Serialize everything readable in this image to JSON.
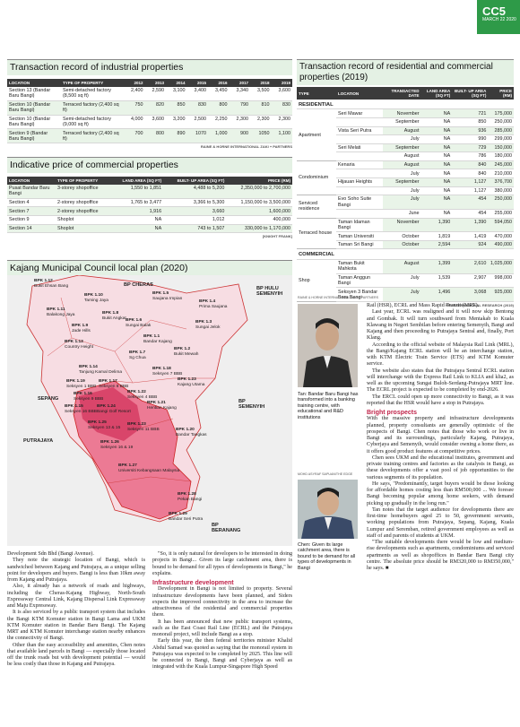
{
  "badge": {
    "code": "CC5",
    "date": "MARCH 22 2020"
  },
  "industrial": {
    "title": "Transaction record of industrial properties",
    "headers": [
      "LOCATION",
      "TYPE OF PROPERTY",
      "2012",
      "2013",
      "2014",
      "2015",
      "2016",
      "2017",
      "2018",
      "2019"
    ],
    "rows": [
      {
        "loc": "Section 13 (Bandar Baru Bangi)",
        "type": "Semi-detached factory (8,500 sq ft)",
        "vals": [
          "2,400",
          "2,590",
          "3,100",
          "3,400",
          "3,450",
          "3,340",
          "3,500",
          "3,600"
        ]
      },
      {
        "loc": "Section 10 (Bandar Baru Bangi)",
        "type": "Terraced factory (2,400 sq ft)",
        "vals": [
          "750",
          "820",
          "850",
          "830",
          "800",
          "790",
          "810",
          "830"
        ]
      },
      {
        "loc": "Section 10 (Bandar Baru Bangi)",
        "type": "Semi-detached factory (9,000 sq ft)",
        "vals": [
          "4,000",
          "3,600",
          "3,200",
          "2,500",
          "2,250",
          "2,300",
          "2,300",
          "2,300"
        ]
      },
      {
        "loc": "Section 9 (Bandar Baru Bangi)",
        "type": "Terraced factory (2,400 sq ft)",
        "vals": [
          "700",
          "800",
          "890",
          "1070",
          "1,000",
          "900",
          "1050",
          "1,100"
        ]
      }
    ],
    "source": "RAINE & HORNE INTERNATIONAL ZAKI + PARTNERS"
  },
  "commercial_price": {
    "title": "Indicative price of commercial properties",
    "headers": [
      "LOCATION",
      "TYPE OF PROPERTY",
      "LAND AREA (SQ FT)",
      "BUILT- UP AREA (SQ FT)",
      "PRICE (RM)"
    ],
    "rows": [
      {
        "loc": "Pusat Bandar Baru Bangi",
        "type": "3-storey shopoffice",
        "land": "1,550 to 1,851",
        "built": "4,488 to 5,200",
        "price": "2,350,000 to 2,700,000"
      },
      {
        "loc": "Section 4",
        "type": "2-storey shopoffice",
        "land": "1,765 to 3,477",
        "built": "3,366 to 5,300",
        "price": "1,150,000 to 3,500,000"
      },
      {
        "loc": "Section 7",
        "type": "2-storey shopoffice",
        "land": "1,916",
        "built": "3,660",
        "price": "1,600,000"
      },
      {
        "loc": "Section 9",
        "type": "Shoplot",
        "land": "NA",
        "built": "1,012",
        "price": "400,000"
      },
      {
        "loc": "Section 14",
        "type": "Shoplot",
        "land": "NA",
        "built": "743 to 1,507",
        "price": "330,000 to 1,170,000"
      }
    ],
    "source": "[KNIGHT FRANK]"
  },
  "residential": {
    "title": "Transaction record of residential and commercial properties (2019)",
    "headers": [
      "TYPE",
      "LOCATION",
      "TRANSACTED DATE",
      "LAND AREA (SQ FT)",
      "BUILT- UP AREA (SQ FT)",
      "PRICE (RM)"
    ],
    "section_res": "RESIDENTIAL",
    "section_com": "COMMERCIAL",
    "groups": [
      {
        "type": "Apartment",
        "rows": [
          {
            "loc": "Seri Mawar",
            "date": "November",
            "land": "NA",
            "built": "721",
            "price": "175,000"
          },
          {
            "loc": "",
            "date": "September",
            "land": "NA",
            "built": "850",
            "price": "250,000"
          },
          {
            "loc": "Vista Seri Putra",
            "date": "August",
            "land": "NA",
            "built": "936",
            "price": "285,000"
          },
          {
            "loc": "",
            "date": "July",
            "land": "NA",
            "built": "990",
            "price": "299,000"
          },
          {
            "loc": "Seri Melati",
            "date": "September",
            "land": "NA",
            "built": "729",
            "price": "150,000"
          },
          {
            "loc": "",
            "date": "August",
            "land": "NA",
            "built": "786",
            "price": "180,000"
          }
        ]
      },
      {
        "type": "Condominium",
        "rows": [
          {
            "loc": "Kenaria",
            "date": "August",
            "land": "NA",
            "built": "840",
            "price": "245,000"
          },
          {
            "loc": "",
            "date": "July",
            "land": "NA",
            "built": "840",
            "price": "210,000"
          },
          {
            "loc": "Hijauan Heights",
            "date": "September",
            "land": "NA",
            "built": "1,127",
            "price": "376,700"
          },
          {
            "loc": "",
            "date": "July",
            "land": "NA",
            "built": "1,127",
            "price": "380,000"
          }
        ]
      },
      {
        "type": "Serviced residence",
        "rows": [
          {
            "loc": "Evo Soho Suite Bangi",
            "date": "July",
            "land": "NA",
            "built": "454",
            "price": "250,000"
          },
          {
            "loc": "",
            "date": "June",
            "land": "NA",
            "built": "454",
            "price": "255,000"
          }
        ]
      },
      {
        "type": "Terraced house",
        "rows": [
          {
            "loc": "Taman Idaman Bangi",
            "date": "November",
            "land": "1,390",
            "built": "1,390",
            "price": "594,050"
          },
          {
            "loc": "Taman Universiti",
            "date": "October",
            "land": "1,819",
            "built": "1,419",
            "price": "470,000"
          },
          {
            "loc": "Taman Sri Bangi",
            "date": "October",
            "land": "2,594",
            "built": "924",
            "price": "490,000"
          }
        ]
      }
    ],
    "commercial": {
      "type": "Shop",
      "rows": [
        {
          "loc": "Taman Bukit Mahkota",
          "date": "August",
          "land": "1,399",
          "built": "2,610",
          "price": "1,025,000"
        },
        {
          "loc": "Taman Anggun Bangi",
          "date": "July",
          "land": "1,539",
          "built": "2,907",
          "price": "998,000"
        },
        {
          "loc": "Seksyen 3 Bandar Baru Bangi",
          "date": "July",
          "land": "1,496",
          "built": "3,068",
          "price": "925,000"
        }
      ]
    },
    "source": "PPI INTERNATIONAL RESEARCH (2019)"
  },
  "map": {
    "title": "Kajang Municipal Council local plan (2020)",
    "districts": [
      {
        "text": "BP CHERAS"
      },
      {
        "text": "BP HULU SEMENYIH"
      },
      {
        "text": "SEPANG"
      },
      {
        "text": "PUTRAJAYA"
      },
      {
        "text": "BP SEMENYIH"
      },
      {
        "text": "BP BERANANG"
      }
    ],
    "labels": [
      {
        "code": "BPK 1.10",
        "name": "Taming Jaya"
      },
      {
        "code": "BPK 1.12",
        "name": "Bukit Ehsan Bang"
      },
      {
        "code": "BPK 1.11",
        "name": "Balakong Jaya"
      },
      {
        "code": "BPK 1.8",
        "name": "Bukit Angkat"
      },
      {
        "code": "BPK 1.5",
        "name": "Saujana Impian"
      },
      {
        "code": "BPK 1.4",
        "name": "Prima Saujana"
      },
      {
        "code": "BPK 1.9",
        "name": "Jade Hills"
      },
      {
        "code": "BPK 1.6",
        "name": "Sungai Balak"
      },
      {
        "code": "BPK 1.3",
        "name": "Sungai Jelok"
      },
      {
        "code": "BPK 1.1",
        "name": "Bandar Kajang"
      },
      {
        "code": "BPK 1.13",
        "name": "Country Height"
      },
      {
        "code": "BPK 1.7",
        "name": "Sg Chua"
      },
      {
        "code": "BPK 1.2",
        "name": "Bukit Mewah"
      },
      {
        "code": "BPK 1.14",
        "name": "Tanjung Kamal Delima"
      },
      {
        "code": "BPK 1.18",
        "name": "Seksyen 7 BBB"
      },
      {
        "code": "BPK 1.19",
        "name": "Seksyen 1 BBB"
      },
      {
        "code": "BPK 1.17",
        "name": "Seksyen 8 BBB"
      },
      {
        "code": "BPK 1.23",
        "name": "Kajang Utama"
      },
      {
        "code": "BPK 1.16",
        "name": "Seksyen 9 BBB"
      },
      {
        "code": "BPK 1.22",
        "name": "Seksyen 4 BBB"
      },
      {
        "code": "BPK 1.21",
        "name": "Hentian Kajang"
      },
      {
        "code": "BPK 1.15",
        "name": "Seksyen 16 BBB"
      },
      {
        "code": "BPK 1.24",
        "name": "Bangi Golf Resort"
      },
      {
        "code": "BPK 1.25",
        "name": "Seksyen 13 & 15"
      },
      {
        "code": "BPK 1.23",
        "name": "Seksyen 11 BBB"
      },
      {
        "code": "BPK 1.20",
        "name": "Bandar Tangkas"
      },
      {
        "code": "BPK 1.26",
        "name": "Seksyen 16 & 19"
      },
      {
        "code": "BPK 1.27",
        "name": "Universiti Kebangsaan Malaysia"
      },
      {
        "code": "BPK 1.28",
        "name": "Pekan Bangi"
      },
      {
        "code": "BPK 1.29",
        "name": "Bandar Seri Putra"
      }
    ]
  },
  "col1": [
    "Development Sdn Bhd (Bangi Avenue).",
    "They note the strategic location of Bangi, which is sandwiched between Kajang and Putrajaya, as a unique selling point for developers and buyers. Bangi is less than 10km away from Kajang and Putrajaya.",
    "Also, it already has a network of roads and highways, including the Cheras-Kajang Highway, North-South Expressway Central Link, Kajang Dispersal Link Expressway and Maju Expressway.",
    "It is also serviced by a public transport system that includes the Bangi KTM Komuter station in Bangi Lama and UKM KTM Komuter station in Bandar Baru Bangi. The Kajang MRT and KTM Komuter interchange station nearby enhances the connectivity of Bangi.",
    "Other than the easy accessibility and amenities, Chen notes that available land parcels in Bangi — especially those located off the trunk roads but with development potential — would be less costly than those in Kajang and Putrajaya."
  ],
  "col2": {
    "p1": "\"So, it is only natural for developers to be interested in doing projects in Bangi... Given its large catchment area, there is bound to be demand for all types of developments in Bangi,\" he explains.",
    "heading": "Infrastructure development",
    "paras": [
      "Development in Bangi is not limited to property. Several infrastructure developments have been planned, and Siders expects the improved connectivity in the area to increase the attractiveness of the residential and commercial properties there.",
      "It has been announced that new public transport systems, such as the East Coast Rail Line (ECRL) and the Putrajaya monorail project, will include Bangi as a stop.",
      "Early this year, the then federal territories minister Khalid Abdul Samad was quoted as saying that the monorail system in Putrajaya was expected to be completed by 2025. This line will be connected to Bangi, Bangi and Cyberjaya as well as integrated with the Kuala Lumpur-Singapore High Speed"
    ]
  },
  "photos": {
    "credit1": "RAINE & HORNE INTERNATIONAL ZAKI + PARTNERS",
    "caption1": "Tan: Bandar Baru Bangi has transformed into a banking training centre, with educational and R&D institutions",
    "credit2": "MOHD ASYRAF SAPUAN/THE EDGE",
    "caption2": "Chen: Given its large catchment area, there is bound to be demand for all types of developments in Bangi"
  },
  "col4": {
    "paras_top": [
      "Rail (HSR), ECRL and Mass Rapid Transit (MRT).",
      "Last year, ECRL was realigned and it will now skip Bentong and Gombak. It will turn southward from Mentakab to Kuala Klawang in Negeri Sembilan before entering Semenyih, Bangi and Kajang and then proceeding to Putrajaya Sentral and, finally, Port Klang.",
      "According to the official website of Malaysia Rail Link (MRL), the Bangi/Kajang ECRL station will be an interchange station, with KTM Electric Train Service (ETS) and KTM Komuter service.",
      "The website also states that the Putrajaya Sentral ECRL station will interchange with the Express Rail Link to KLIA and klia2, as well as the upcoming Sungai Buloh-Serdang-Putrajaya MRT line. The ECRL project is expected to be completed by end-2026.",
      "The ERCL could open up more connectivity to Bangi, as it was reported that the HSR would have a stop in Putrajaya."
    ],
    "heading": "Bright prospects",
    "paras_bottom": [
      "With the massive property and infrastructure developments planned, property consultants are generally optimistic of the prospects of Bangi. Chen notes that those who work or live in Bangi and its surroundings, particularly Kajang, Putrajaya, Cyberjaya and Semenyih, would consider owning a home there, as it offers good product features at competitive prices.",
      "Chen sees UKM and the educational institutes, government and private training centres and factories as the catalysts in Bangi, as these developments offer a vast pool of job opportunities to the various segments of its population.",
      "He says, \"Predominantly, target buyers would be those looking for affordable homes costing less than RM500,000 ... We foresee Bangi becoming popular among home seekers, with demand picking up gradually in the long run.\"",
      "Tan notes that the target audience for developments there are first-time homebuyers aged 25 to 50, government servants, working populations from Putrajaya, Sepang, Kajang, Kuala Lumpur and Seremban, retired government employees as well as staff of and parents of students at UKM.",
      "\"The suitable developments there would be low and medium-rise developments such as apartments, condominiums and serviced apartments as well as shopoffices in Bandar Baru Bangi city centre. The absolute price should be RM320,000 to RM350,000,\" he says."
    ],
    "end_mark": "■"
  }
}
